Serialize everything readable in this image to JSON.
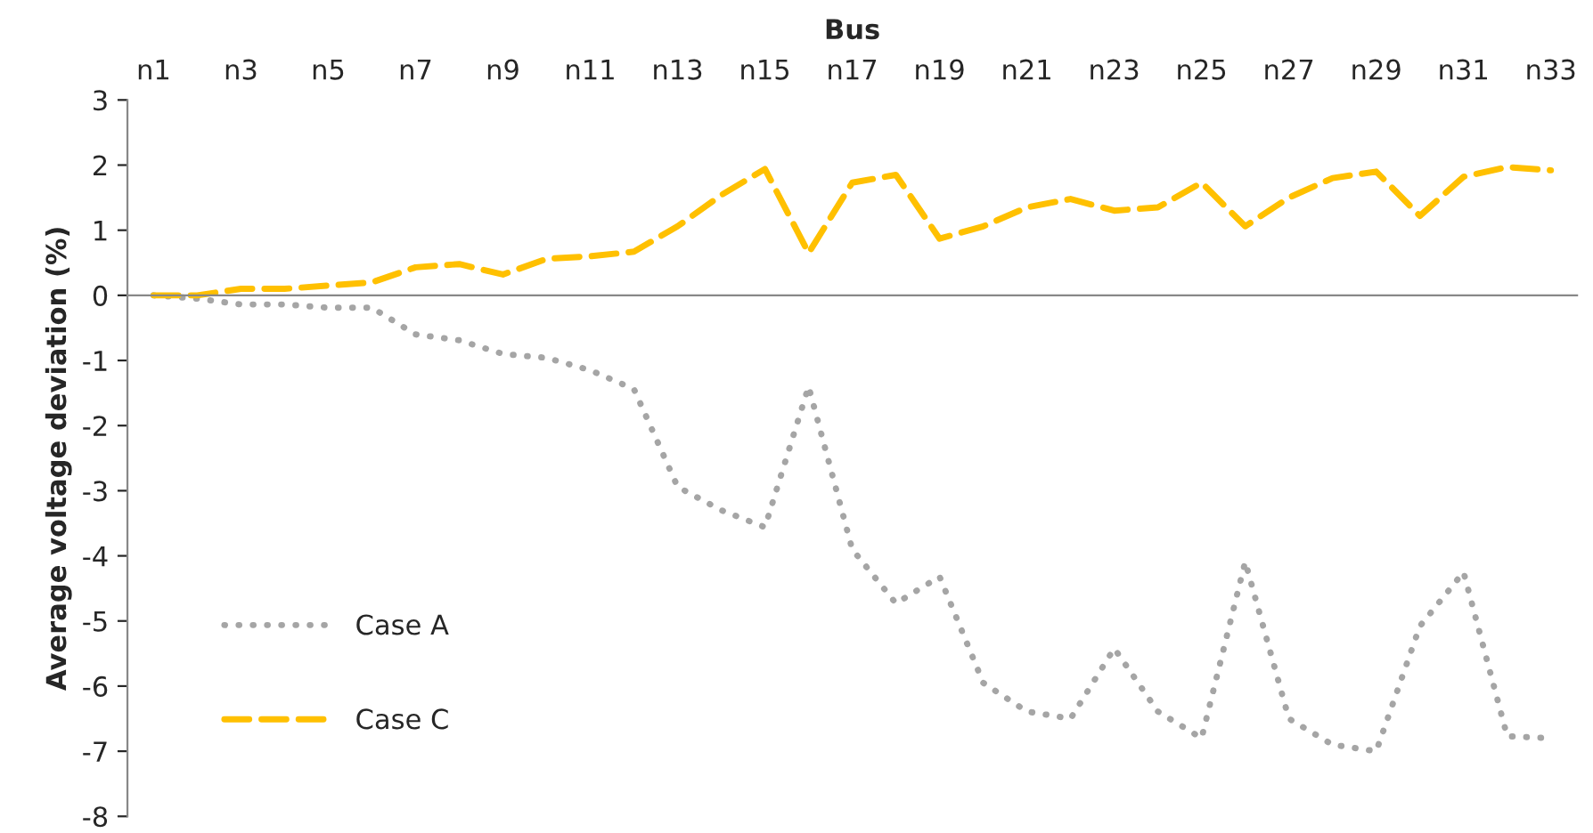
{
  "chart_data": {
    "type": "line",
    "xlabel": "Bus",
    "ylabel": "Average voltage deviation (%)",
    "categories": [
      "n1",
      null,
      "n3",
      null,
      "n5",
      null,
      "n7",
      null,
      "n9",
      null,
      "n11",
      null,
      "n13",
      null,
      "n15",
      null,
      "n17",
      null,
      "n19",
      null,
      "n21",
      null,
      "n23",
      null,
      "n25",
      null,
      "n27",
      null,
      "n29",
      null,
      "n31",
      null,
      "n33"
    ],
    "series": [
      {
        "name": "Case A",
        "color": "#a5a5a5",
        "line_style": "dotted",
        "values": [
          0,
          -0.05,
          -0.14,
          -0.14,
          -0.19,
          -0.19,
          -0.6,
          -0.69,
          -0.9,
          -0.96,
          -1.15,
          -1.44,
          -2.94,
          -3.3,
          -3.56,
          -1.4,
          -3.9,
          -4.73,
          -4.32,
          -5.95,
          -6.39,
          -6.5,
          -5.42,
          -6.39,
          -6.8,
          -4.09,
          -6.5,
          -6.9,
          -7.0,
          -5.08,
          -4.25,
          -6.77,
          -6.8
        ]
      },
      {
        "name": "Case C",
        "color": "#ffc000",
        "line_style": "dashed",
        "values": [
          0,
          0,
          0.1,
          0.1,
          0.15,
          0.2,
          0.43,
          0.48,
          0.32,
          0.56,
          0.6,
          0.67,
          1.06,
          1.54,
          1.94,
          0.65,
          1.73,
          1.85,
          0.87,
          1.06,
          1.35,
          1.48,
          1.3,
          1.35,
          1.73,
          1.06,
          1.5,
          1.8,
          1.9,
          1.22,
          1.82,
          1.97,
          1.92
        ]
      }
    ],
    "ylim": [
      -8,
      3
    ],
    "yticks": [
      -8,
      -7,
      -6,
      -5,
      -4,
      -3,
      -2,
      -1,
      0,
      1,
      2,
      3
    ],
    "legend": "bottom left"
  }
}
